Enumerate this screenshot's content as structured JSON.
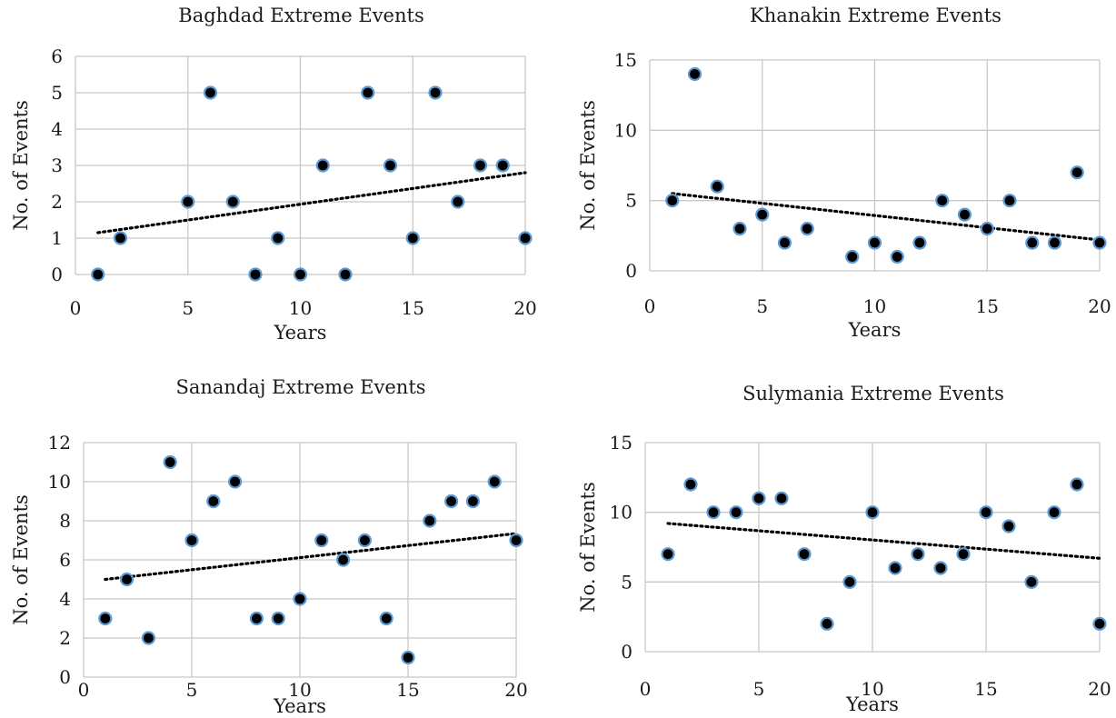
{
  "chart_data": [
    {
      "type": "scatter",
      "title": "Baghdad Extreme Events",
      "xlabel": "Years",
      "ylabel": "No. of Events",
      "xlim": [
        0,
        20
      ],
      "ylim": [
        0,
        6
      ],
      "xticks": [
        0,
        5,
        10,
        15,
        20
      ],
      "yticks": [
        0,
        1,
        2,
        3,
        4,
        5,
        6
      ],
      "x": [
        1,
        2,
        3,
        4,
        5,
        6,
        7,
        8,
        9,
        10,
        11,
        12,
        13,
        14,
        15,
        16,
        17,
        18,
        19,
        20
      ],
      "y": [
        0,
        1,
        null,
        null,
        2,
        5,
        2,
        0,
        1,
        0,
        3,
        0,
        5,
        3,
        1,
        5,
        2,
        3,
        3,
        1
      ],
      "trendline": {
        "type": "linear",
        "from": [
          1,
          1.15
        ],
        "to": [
          20,
          2.8
        ]
      },
      "colors": {
        "marker_fill": "#000000",
        "marker_edge": "#5b9bd5",
        "grid": "#c8c8c8"
      },
      "grid": true
    },
    {
      "type": "scatter",
      "title": "Khanakin Extreme Events",
      "xlabel": "Years",
      "ylabel": "No. of Events",
      "xlim": [
        0,
        20
      ],
      "ylim": [
        0,
        15
      ],
      "xticks": [
        0,
        5,
        10,
        15,
        20
      ],
      "yticks": [
        0,
        5,
        10,
        15
      ],
      "x": [
        1,
        2,
        3,
        4,
        5,
        6,
        7,
        8,
        9,
        10,
        11,
        12,
        13,
        14,
        15,
        16,
        17,
        18,
        19,
        20
      ],
      "y": [
        5,
        14,
        6,
        3,
        4,
        2,
        3,
        null,
        1,
        2,
        1,
        2,
        5,
        4,
        3,
        5,
        2,
        2,
        7,
        2
      ],
      "trendline": {
        "type": "linear",
        "from": [
          1,
          5.5
        ],
        "to": [
          20,
          2.2
        ]
      },
      "colors": {
        "marker_fill": "#000000",
        "marker_edge": "#5b9bd5",
        "grid": "#c8c8c8"
      },
      "grid": true
    },
    {
      "type": "scatter",
      "title": "Sanandaj Extreme Events",
      "xlabel": "Years",
      "ylabel": "No. of Events",
      "xlim": [
        0,
        20
      ],
      "ylim": [
        0,
        12
      ],
      "xticks": [
        0,
        5,
        10,
        15,
        20
      ],
      "yticks": [
        0,
        2,
        4,
        6,
        8,
        10,
        12
      ],
      "x": [
        1,
        2,
        3,
        4,
        5,
        6,
        7,
        8,
        9,
        10,
        11,
        12,
        13,
        14,
        15,
        16,
        17,
        18,
        19,
        20
      ],
      "y": [
        3,
        5,
        2,
        11,
        7,
        9,
        10,
        3,
        3,
        4,
        7,
        6,
        7,
        3,
        1,
        8,
        9,
        9,
        10,
        7
      ],
      "trendline": {
        "type": "linear",
        "from": [
          1,
          5.0
        ],
        "to": [
          20,
          7.35
        ]
      },
      "colors": {
        "marker_fill": "#000000",
        "marker_edge": "#5b9bd5",
        "grid": "#c8c8c8"
      },
      "grid": true
    },
    {
      "type": "scatter",
      "title": "Sulymania Extreme Events",
      "xlabel": "Years",
      "ylabel": "No. of Events",
      "xlim": [
        0,
        20
      ],
      "ylim": [
        0,
        15
      ],
      "xticks": [
        0,
        5,
        10,
        15,
        20
      ],
      "yticks": [
        0,
        5,
        10,
        15
      ],
      "x": [
        1,
        2,
        3,
        4,
        5,
        6,
        7,
        8,
        9,
        10,
        11,
        12,
        13,
        14,
        15,
        16,
        17,
        18,
        19,
        20
      ],
      "y": [
        7,
        12,
        10,
        10,
        11,
        11,
        7,
        2,
        5,
        10,
        6,
        7,
        6,
        7,
        10,
        9,
        5,
        10,
        12,
        2
      ],
      "trendline": {
        "type": "linear",
        "from": [
          1,
          9.2
        ],
        "to": [
          20,
          6.7
        ]
      },
      "colors": {
        "marker_fill": "#000000",
        "marker_edge": "#5b9bd5",
        "grid": "#c8c8c8"
      },
      "grid": true
    }
  ]
}
